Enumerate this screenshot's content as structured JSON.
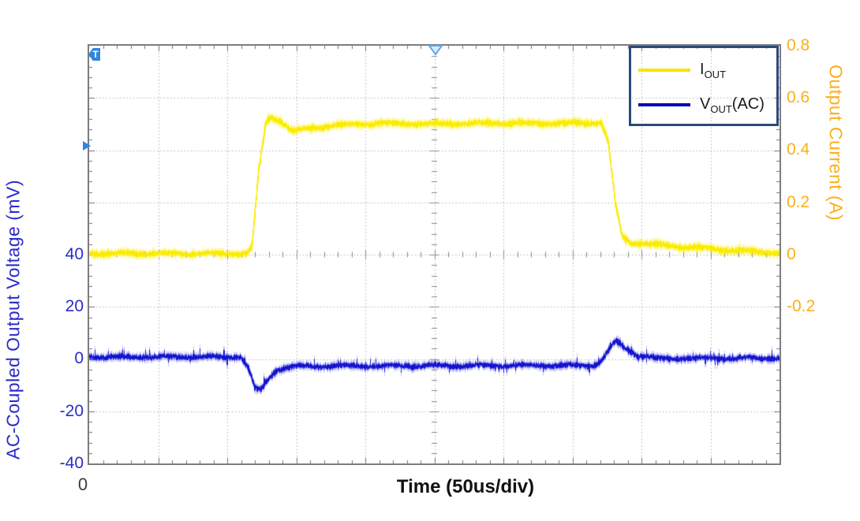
{
  "colors": {
    "background": "#ffffff",
    "frame": "#7d7d7d",
    "grid": "#b2b2b2",
    "left_axis_text": "#2b2bcb",
    "right_axis_text": "#fbaf18",
    "legend_border": "#2a4a7f",
    "trigger_marker": "#2e86e0",
    "iout_trace": "#faec00",
    "vout_trace": "#1414ce"
  },
  "chart_data": {
    "type": "line",
    "title": "",
    "x_axis": {
      "label": "Time  (50us/div)",
      "origin_label": "0",
      "divisions": 10,
      "per_div": "50us"
    },
    "left_axis": {
      "label": "AC-Coupled Output Voltage  (mV)",
      "units": "mV",
      "units_per_div": 20,
      "zero_at_div_from_top": 6,
      "tick_labels": [
        "40",
        "20",
        "0",
        "-20",
        "-40"
      ],
      "color": "#2b2bcb"
    },
    "right_axis": {
      "label": "Output Current  (A)",
      "units": "A",
      "units_per_div": 0.2,
      "zero_at_div_from_top": 4,
      "tick_labels": [
        "0.8",
        "0.6",
        "0.4",
        "0.2",
        "0",
        "-0.2"
      ],
      "color": "#fbaf18"
    },
    "grid": {
      "x_divisions": 10,
      "y_divisions": 8,
      "style": "dotted gridlines, oscilloscope center tick rulers, minor edge ticks"
    },
    "legend": {
      "position": "top-right",
      "items": [
        {
          "prefix": "I",
          "sub": "OUT",
          "suffix": "",
          "color": "#f7e400"
        },
        {
          "prefix": "V",
          "sub": "OUT",
          "suffix": "(AC)",
          "color": "#0000b4"
        }
      ]
    },
    "markers": {
      "trigger_flag_label": "T"
    },
    "series": [
      {
        "name": "IOUT",
        "axis": "right",
        "color": "#faec00",
        "glow": "rgba(255,240,0,0.38)",
        "noise_units": 0.009,
        "spike_units": 0.012,
        "spike_prob": 0.02,
        "keypoints": [
          [
            0,
            0.004
          ],
          [
            2.28,
            0.004
          ],
          [
            2.36,
            0.03
          ],
          [
            2.46,
            0.33
          ],
          [
            2.56,
            0.505
          ],
          [
            2.63,
            0.527
          ],
          [
            2.78,
            0.51
          ],
          [
            2.95,
            0.473
          ],
          [
            3.2,
            0.483
          ],
          [
            3.55,
            0.495
          ],
          [
            4.2,
            0.503
          ],
          [
            5.0,
            0.5
          ],
          [
            5.8,
            0.504
          ],
          [
            6.6,
            0.502
          ],
          [
            7.1,
            0.505
          ],
          [
            7.42,
            0.505
          ],
          [
            7.52,
            0.43
          ],
          [
            7.62,
            0.2
          ],
          [
            7.72,
            0.07
          ],
          [
            7.85,
            0.046
          ],
          [
            8.3,
            0.036
          ],
          [
            9.0,
            0.022
          ],
          [
            9.6,
            0.012
          ],
          [
            10,
            0.007
          ]
        ]
      },
      {
        "name": "VOUT(AC)",
        "axis": "left",
        "color": "#1414ce",
        "glow": "rgba(62,62,232,0.32)",
        "noise_units": 0.85,
        "spike_units": 3.0,
        "spike_prob": 0.06,
        "keypoints": [
          [
            0,
            0.8
          ],
          [
            2.2,
            0.8
          ],
          [
            2.3,
            -3.0
          ],
          [
            2.4,
            -11.2
          ],
          [
            2.48,
            -12.0
          ],
          [
            2.6,
            -7.5
          ],
          [
            2.72,
            -4.0
          ],
          [
            2.92,
            -2.8
          ],
          [
            4.0,
            -2.7
          ],
          [
            5.5,
            -2.5
          ],
          [
            7.3,
            -2.4
          ],
          [
            7.42,
            -0.8
          ],
          [
            7.56,
            4.8
          ],
          [
            7.64,
            6.8
          ],
          [
            7.76,
            4.2
          ],
          [
            7.95,
            1.4
          ],
          [
            8.25,
            0.2
          ],
          [
            9.0,
            0.3
          ],
          [
            10,
            0.4
          ]
        ]
      }
    ]
  }
}
